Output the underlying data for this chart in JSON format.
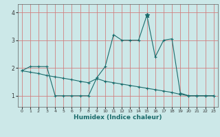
{
  "xlabel": "Humidex (Indice chaleur)",
  "xlim": [
    -0.5,
    23.5
  ],
  "ylim": [
    0.6,
    4.3
  ],
  "yticks": [
    1,
    2,
    3,
    4
  ],
  "xticks": [
    0,
    1,
    2,
    3,
    4,
    5,
    6,
    7,
    8,
    9,
    10,
    11,
    12,
    13,
    14,
    15,
    16,
    17,
    18,
    19,
    20,
    21,
    22,
    23
  ],
  "bg_color": "#cce8e8",
  "line_color": "#1a6b6b",
  "series1_x": [
    0,
    1,
    2,
    3,
    4,
    5,
    6,
    7,
    8,
    9,
    10,
    11,
    12,
    13,
    14,
    15,
    16,
    17,
    18,
    19,
    20,
    21,
    22,
    23
  ],
  "series1_y": [
    1.9,
    2.05,
    2.05,
    2.05,
    1.0,
    1.0,
    1.0,
    1.0,
    1.0,
    1.65,
    2.05,
    3.2,
    3.0,
    3.0,
    3.0,
    3.9,
    2.4,
    3.0,
    3.05,
    1.1,
    1.0,
    1.0,
    1.0,
    1.0
  ],
  "series2_x": [
    0,
    1,
    2,
    3,
    4,
    5,
    6,
    7,
    8,
    9,
    10,
    11,
    12,
    13,
    14,
    15,
    16,
    17,
    18,
    19,
    20,
    21,
    22,
    23
  ],
  "series2_y": [
    1.9,
    1.85,
    1.8,
    1.73,
    1.68,
    1.63,
    1.58,
    1.52,
    1.47,
    1.62,
    1.52,
    1.47,
    1.42,
    1.37,
    1.32,
    1.27,
    1.22,
    1.17,
    1.12,
    1.05,
    1.0,
    1.0,
    1.0,
    1.0
  ],
  "peak_x": 15,
  "peak_y": 3.9,
  "tick_fontsize": 5.5,
  "xlabel_fontsize": 6.5
}
